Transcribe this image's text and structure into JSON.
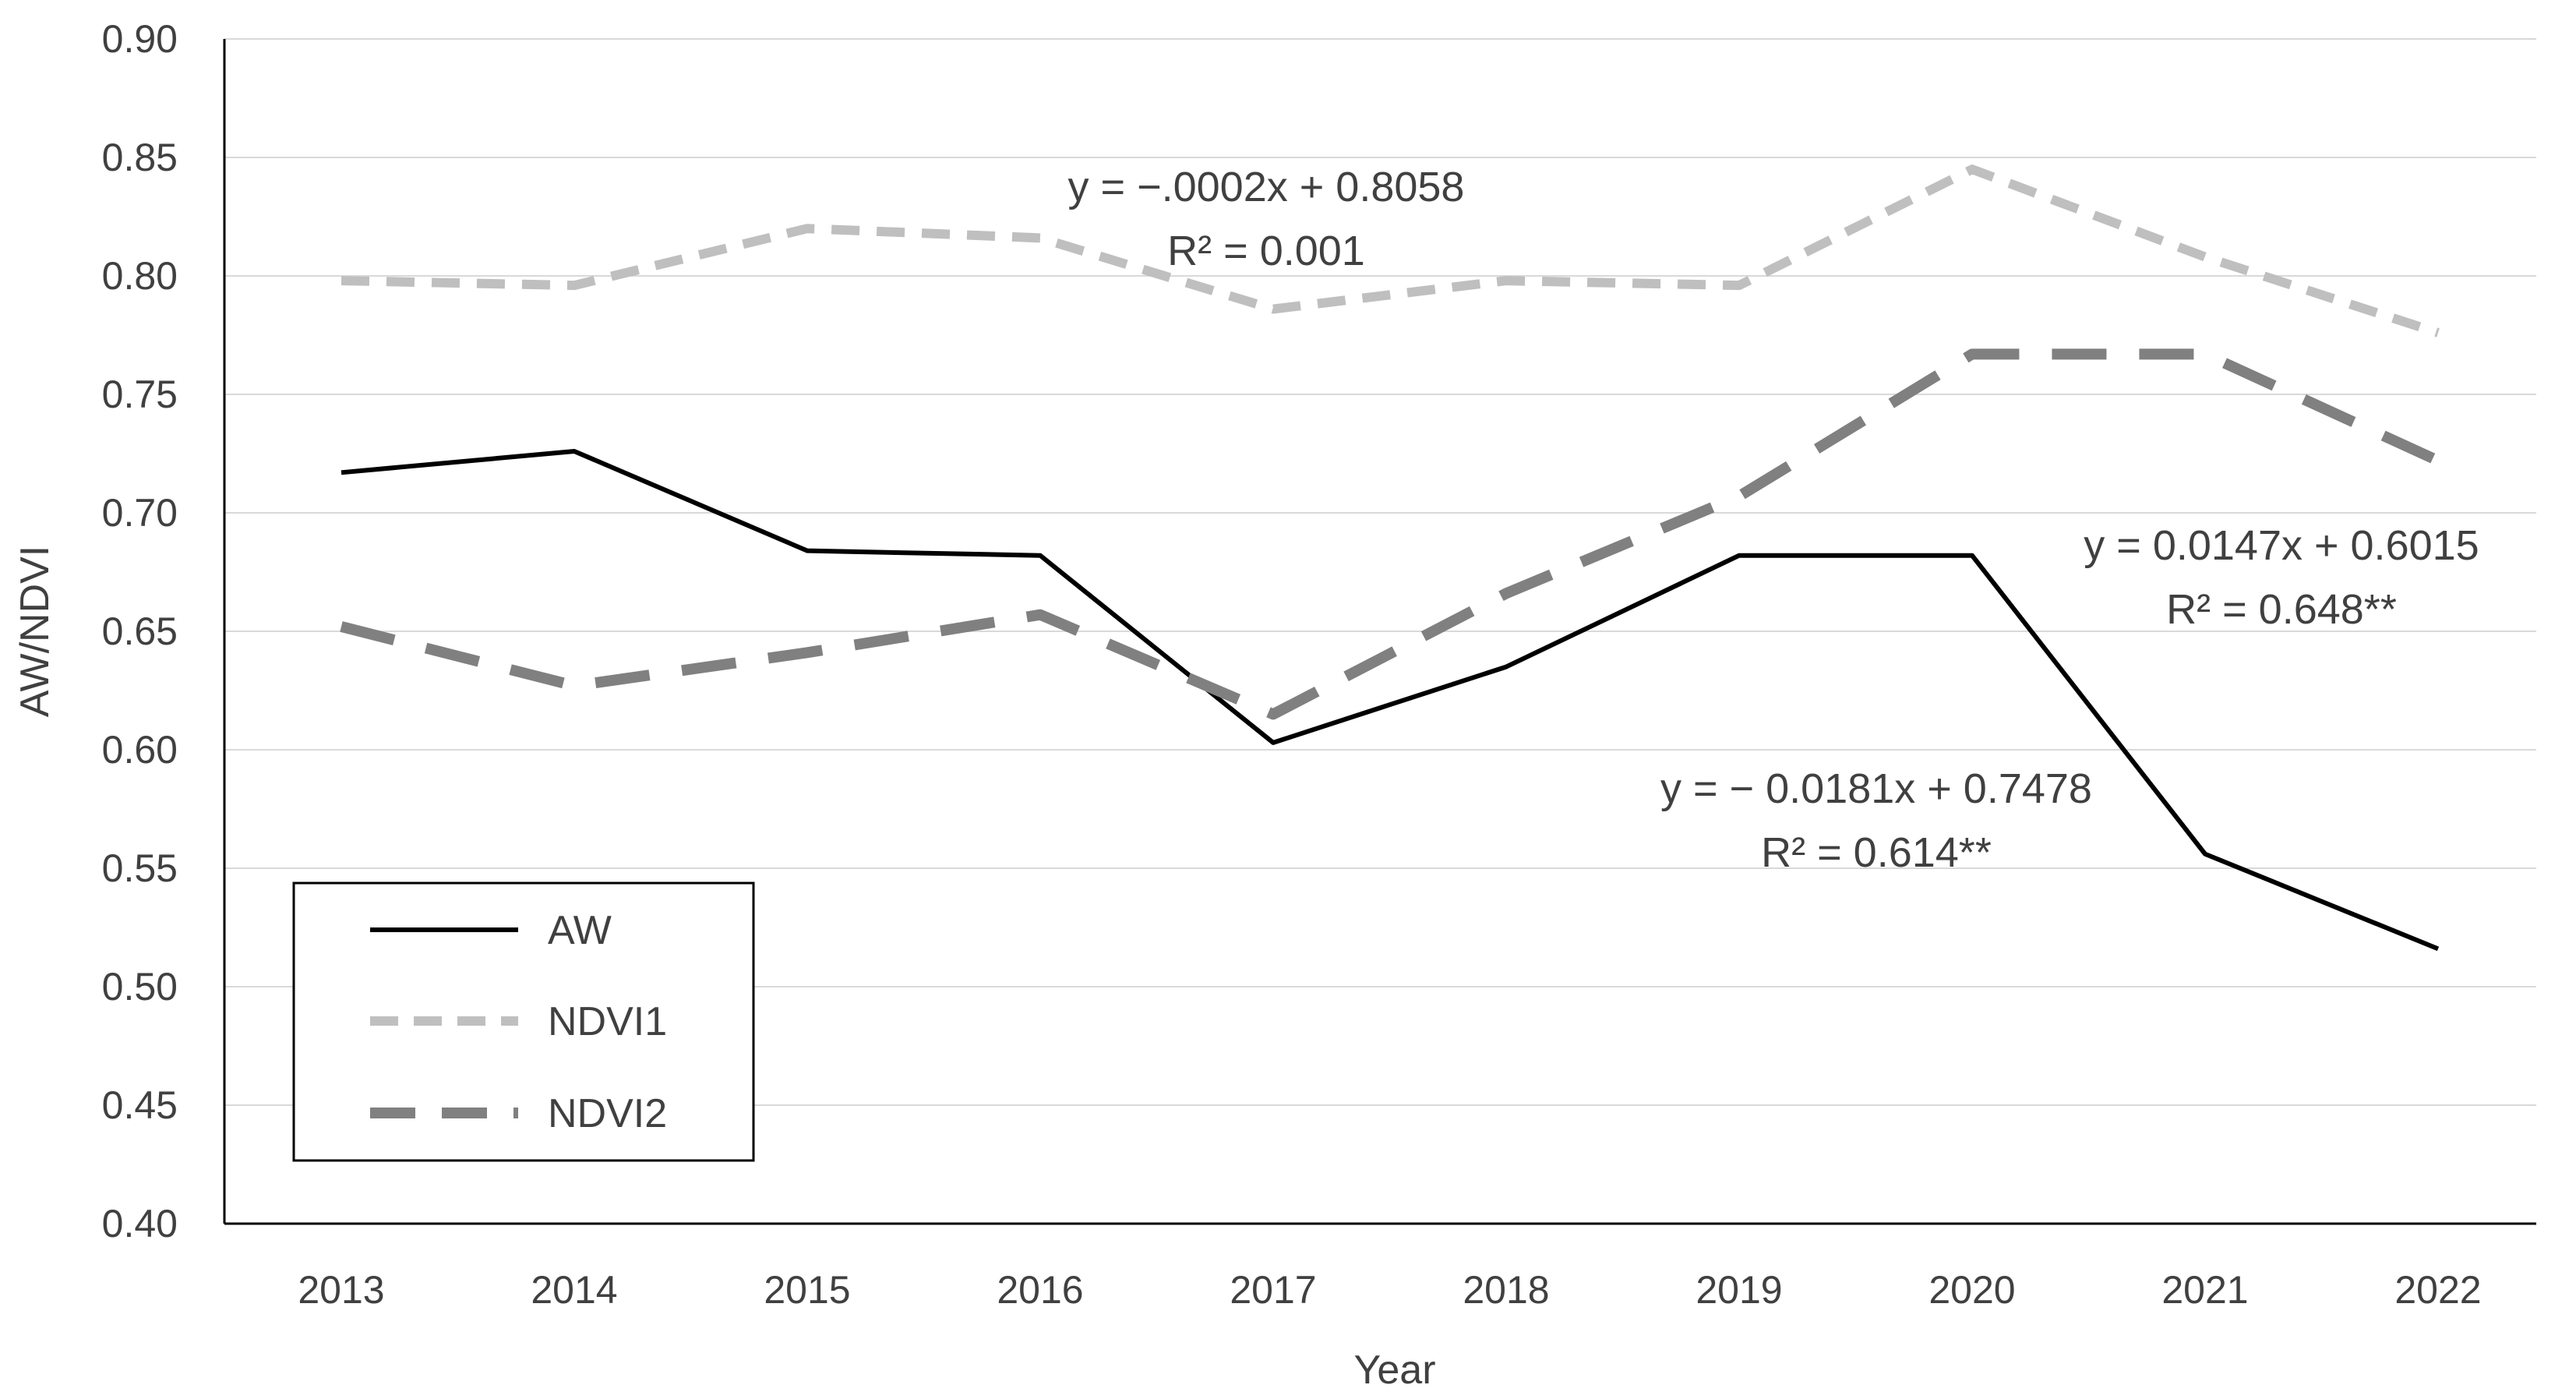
{
  "chart_data": {
    "type": "line",
    "title": "",
    "xlabel": "Year",
    "ylabel": "AW/NDVI",
    "categories": [
      "2013",
      "2014",
      "2015",
      "2016",
      "2017",
      "2018",
      "2019",
      "2020",
      "2021",
      "2022"
    ],
    "ylim": [
      0.4,
      0.9
    ],
    "yticks": [
      "0.40",
      "0.45",
      "0.50",
      "0.55",
      "0.60",
      "0.65",
      "0.70",
      "0.75",
      "0.80",
      "0.85",
      "0.90"
    ],
    "grid": true,
    "legend_position": "bottom-left",
    "series": [
      {
        "name": "AW",
        "style": "solid",
        "color": "#000000",
        "values": [
          0.717,
          0.726,
          0.684,
          0.682,
          0.603,
          0.635,
          0.682,
          0.682,
          0.556,
          0.516
        ]
      },
      {
        "name": "NDVI1",
        "style": "short-dash",
        "color": "#bfbfbf",
        "values": [
          0.798,
          0.796,
          0.82,
          0.816,
          0.786,
          0.798,
          0.796,
          0.845,
          0.808,
          0.776
        ]
      },
      {
        "name": "NDVI2",
        "style": "long-dash",
        "color": "#808080",
        "values": [
          0.652,
          0.627,
          0.641,
          0.657,
          0.615,
          0.666,
          0.707,
          0.767,
          0.767,
          0.722
        ]
      }
    ],
    "annotations": [
      {
        "series": "NDVI1",
        "equation": "y = −.0002x + 0.8058",
        "r2": "R² = 0.001"
      },
      {
        "series": "NDVI2",
        "equation": "y = 0.0147x + 0.6015",
        "r2": "R² = 0.648**"
      },
      {
        "series": "AW",
        "equation": "y = − 0.0181x + 0.7478",
        "r2": "R² = 0.614**"
      }
    ]
  }
}
